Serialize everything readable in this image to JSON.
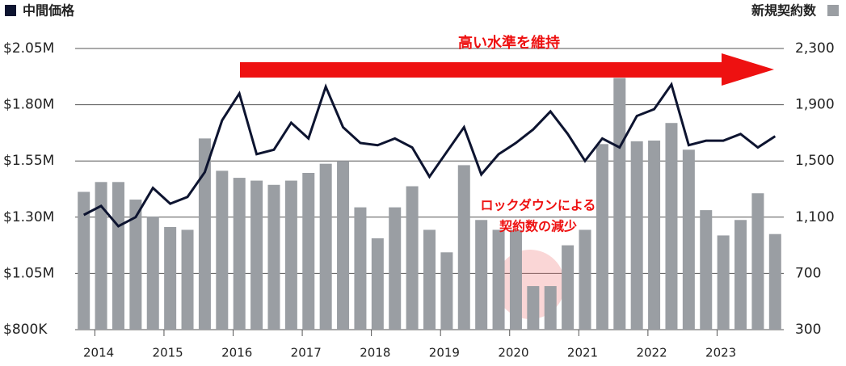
{
  "chart_data": {
    "type": "bar-line",
    "legend": {
      "line": "中間価格",
      "bar": "新規契約数"
    },
    "categories": [
      null,
      "2014",
      null,
      null,
      null,
      "2015",
      null,
      null,
      null,
      "2016",
      null,
      null,
      null,
      "2017",
      null,
      null,
      null,
      "2018",
      null,
      null,
      null,
      "2019",
      null,
      null,
      null,
      "2020",
      null,
      null,
      null,
      "2021",
      null,
      null,
      null,
      "2022",
      null,
      null,
      null,
      "2023",
      null,
      null,
      null
    ],
    "series": [
      {
        "name": "新規契約数",
        "type": "bar",
        "axis": "y2",
        "color": "#9a9ea3",
        "values": [
          1280,
          1350,
          1350,
          1225,
          1105,
          1030,
          1010,
          1660,
          1430,
          1380,
          1360,
          1330,
          1360,
          1415,
          1480,
          1500,
          1170,
          950,
          1170,
          1320,
          1010,
          850,
          1470,
          1080,
          1010,
          1010,
          610,
          610,
          900,
          1010,
          1620,
          2090,
          1640,
          1645,
          1770,
          1580,
          1150,
          970,
          1080,
          1270,
          980
        ]
      },
      {
        "name": "中間価格",
        "type": "line",
        "axis": "y",
        "color": "#0d1430",
        "values": [
          1.31,
          1.35,
          1.26,
          1.3,
          1.43,
          1.36,
          1.39,
          1.5,
          1.73,
          1.85,
          1.58,
          1.6,
          1.72,
          1.65,
          1.88,
          1.7,
          1.63,
          1.62,
          1.65,
          1.61,
          1.48,
          1.59,
          1.7,
          1.49,
          1.58,
          1.63,
          1.69,
          1.77,
          1.67,
          1.55,
          1.65,
          1.61,
          1.75,
          1.78,
          1.89,
          1.62,
          1.64,
          1.64,
          1.67,
          1.61,
          1.66
        ]
      }
    ],
    "ylim": [
      0.8,
      2.05
    ],
    "yticks": [
      {
        "value": 0.8,
        "label": "$800K"
      },
      {
        "value": 1.05,
        "label": "$1.05M"
      },
      {
        "value": 1.3,
        "label": "$1.30M"
      },
      {
        "value": 1.55,
        "label": "$1.55M"
      },
      {
        "value": 1.8,
        "label": "$1.80M"
      },
      {
        "value": 2.05,
        "label": "$2.05M"
      }
    ],
    "y2lim": [
      300,
      2300
    ],
    "y2ticks": [
      {
        "value": 300,
        "label": "300"
      },
      {
        "value": 700,
        "label": "700"
      },
      {
        "value": 1100,
        "label": "1,100"
      },
      {
        "value": 1500,
        "label": "1,500"
      },
      {
        "value": 1900,
        "label": "1,900"
      },
      {
        "value": 2300,
        "label": "2,300"
      }
    ],
    "grid": true,
    "annotations": {
      "arrow": "高い水準を維持",
      "lockdown": [
        "ロックダウンによる",
        "契約数の減少"
      ]
    }
  }
}
